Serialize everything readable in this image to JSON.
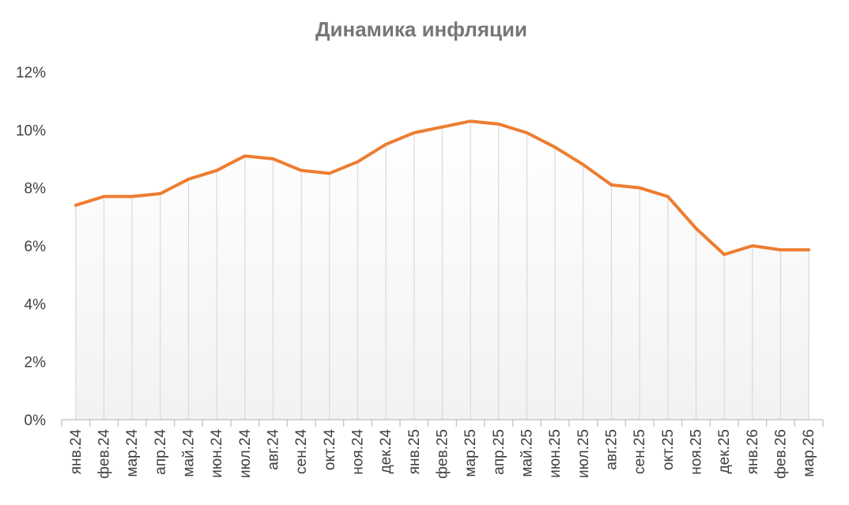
{
  "chart_data": {
    "type": "line",
    "title": "Динамика инфляции",
    "xlabel": "",
    "ylabel": "",
    "categories": [
      "янв.24",
      "фев.24",
      "мар.24",
      "апр.24",
      "май.24",
      "июн.24",
      "июл.24",
      "авг.24",
      "сен.24",
      "окт.24",
      "ноя.24",
      "дек.24",
      "янв.25",
      "фев.25",
      "мар.25",
      "апр.25",
      "май.25",
      "июн.25",
      "июл.25",
      "авг.25",
      "сен.25",
      "окт.25",
      "ноя.25",
      "дек.25",
      "янв.26",
      "фев.26",
      "мар.26"
    ],
    "series": [
      {
        "values": [
          7.4,
          7.7,
          7.7,
          7.8,
          8.3,
          8.6,
          9.1,
          9.0,
          8.6,
          8.5,
          8.9,
          9.5,
          9.9,
          10.1,
          10.3,
          10.2,
          9.9,
          9.4,
          8.8,
          8.1,
          8.0,
          7.7,
          6.6,
          5.7,
          6.0,
          5.86,
          5.86
        ],
        "color": "#ED7D31"
      }
    ],
    "ylim": [
      0,
      12
    ],
    "yticks": [
      0,
      2,
      4,
      6,
      8,
      10,
      12
    ],
    "ytick_labels": [
      "0%",
      "2%",
      "4%",
      "6%",
      "8%",
      "10%",
      "12%"
    ],
    "drop_lines": true,
    "area_gradient": true,
    "grid": false,
    "legend": "none"
  }
}
